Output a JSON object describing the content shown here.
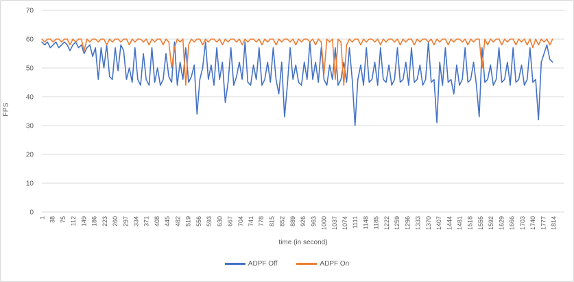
{
  "figure": {
    "background": "#ffffff",
    "border_color": "#d9d9d9",
    "gridline_color": "#d9d9d9",
    "label_color": "#595959"
  },
  "axes": {
    "y_title": "FPS",
    "x_title": "time (in second)",
    "y_ticks": [
      0,
      10,
      20,
      30,
      40,
      50,
      60,
      70
    ],
    "x_tick_labels": [
      "1",
      "38",
      "75",
      "112",
      "149",
      "186",
      "223",
      "260",
      "297",
      "334",
      "371",
      "408",
      "445",
      "482",
      "519",
      "556",
      "593",
      "630",
      "667",
      "704",
      "741",
      "778",
      "815",
      "852",
      "889",
      "926",
      "963",
      "1000",
      "1037",
      "1074",
      "1111",
      "1148",
      "1185",
      "1222",
      "1259",
      "1296",
      "1333",
      "1370",
      "1407",
      "1444",
      "1481",
      "1518",
      "1555",
      "1592",
      "1629",
      "1666",
      "1703",
      "1740",
      "1777",
      "1814"
    ]
  },
  "legend": [
    {
      "label": "ADPF Off",
      "color": "#4472C4"
    },
    {
      "label": "ADPF On",
      "color": "#ED7D31"
    }
  ],
  "chart_data": {
    "type": "line",
    "title": "",
    "xlabel": "time (in second)",
    "ylabel": "FPS",
    "xlim": [
      1,
      1814
    ],
    "ylim": [
      0,
      70
    ],
    "y_tick_step": 10,
    "x_tick_step": 37,
    "grid": true,
    "legend_position": "bottom-center",
    "x": [
      1,
      11,
      21,
      31,
      41,
      51,
      61,
      71,
      81,
      91,
      101,
      111,
      121,
      131,
      141,
      151,
      161,
      171,
      181,
      191,
      201,
      211,
      221,
      231,
      241,
      251,
      261,
      271,
      281,
      291,
      301,
      311,
      321,
      331,
      341,
      351,
      361,
      371,
      381,
      391,
      401,
      411,
      421,
      431,
      441,
      451,
      461,
      471,
      481,
      491,
      501,
      511,
      521,
      531,
      541,
      551,
      561,
      571,
      581,
      591,
      601,
      611,
      621,
      631,
      641,
      651,
      661,
      671,
      681,
      691,
      701,
      711,
      721,
      731,
      741,
      751,
      761,
      771,
      781,
      791,
      801,
      811,
      821,
      831,
      841,
      851,
      861,
      871,
      881,
      891,
      901,
      911,
      921,
      931,
      941,
      951,
      961,
      971,
      981,
      991,
      1001,
      1011,
      1021,
      1031,
      1041,
      1051,
      1061,
      1071,
      1081,
      1091,
      1101,
      1111,
      1121,
      1131,
      1141,
      1151,
      1161,
      1171,
      1181,
      1191,
      1201,
      1211,
      1221,
      1231,
      1241,
      1251,
      1261,
      1271,
      1281,
      1291,
      1301,
      1311,
      1321,
      1331,
      1341,
      1351,
      1361,
      1371,
      1381,
      1391,
      1401,
      1411,
      1421,
      1431,
      1441,
      1451,
      1461,
      1471,
      1481,
      1491,
      1501,
      1511,
      1521,
      1531,
      1541,
      1551,
      1561,
      1571,
      1581,
      1591,
      1601,
      1611,
      1621,
      1631,
      1641,
      1651,
      1661,
      1671,
      1681,
      1691,
      1701,
      1711,
      1721,
      1731,
      1741,
      1751,
      1761,
      1771,
      1781,
      1791,
      1801,
      1811
    ],
    "series": [
      {
        "name": "ADPF Off",
        "color": "#4472C4",
        "values": [
          59,
          58,
          59,
          57,
          58,
          59,
          57,
          58,
          59,
          58,
          56,
          58,
          59,
          57,
          58,
          55,
          57,
          58,
          54,
          57,
          46,
          57,
          50,
          58,
          47,
          46,
          57,
          49,
          58,
          56,
          46,
          50,
          45,
          57,
          46,
          44,
          55,
          46,
          44,
          57,
          45,
          50,
          44,
          46,
          55,
          47,
          45,
          59,
          44,
          52,
          46,
          57,
          45,
          47,
          51,
          34,
          46,
          50,
          59,
          46,
          51,
          44,
          57,
          46,
          52,
          38,
          45,
          57,
          44,
          47,
          52,
          46,
          59,
          45,
          44,
          51,
          46,
          57,
          44,
          46,
          52,
          45,
          57,
          46,
          41,
          52,
          33,
          44,
          57,
          46,
          51,
          45,
          44,
          52,
          46,
          59,
          46,
          52,
          45,
          57,
          46,
          44,
          51,
          46,
          57,
          44,
          46,
          52,
          45,
          57,
          46,
          30,
          46,
          51,
          44,
          57,
          45,
          46,
          52,
          44,
          57,
          46,
          45,
          51,
          44,
          46,
          57,
          45,
          46,
          52,
          44,
          57,
          45,
          46,
          51,
          44,
          46,
          59,
          45,
          46,
          31,
          52,
          44,
          57,
          45,
          46,
          41,
          51,
          44,
          46,
          57,
          45,
          46,
          52,
          44,
          33,
          57,
          45,
          46,
          51,
          44,
          46,
          57,
          45,
          46,
          52,
          44,
          57,
          45,
          46,
          51,
          44,
          46,
          57,
          45,
          46,
          32,
          52,
          55,
          58,
          53,
          52
        ]
      },
      {
        "name": "ADPF On",
        "color": "#ED7D31",
        "values": [
          60,
          59,
          60,
          60,
          59,
          60,
          60,
          59,
          60,
          60,
          58,
          60,
          59,
          60,
          60,
          56,
          60,
          59,
          60,
          60,
          59,
          60,
          60,
          58,
          60,
          59,
          60,
          60,
          59,
          60,
          60,
          58,
          60,
          59,
          60,
          60,
          59,
          60,
          58,
          60,
          59,
          60,
          60,
          58,
          60,
          59,
          50,
          57,
          60,
          59,
          60,
          44,
          58,
          60,
          59,
          60,
          60,
          58,
          60,
          59,
          60,
          60,
          59,
          60,
          58,
          60,
          59,
          60,
          60,
          59,
          60,
          58,
          60,
          59,
          60,
          60,
          59,
          60,
          58,
          60,
          59,
          60,
          60,
          58,
          60,
          59,
          60,
          60,
          59,
          60,
          58,
          60,
          59,
          60,
          60,
          59,
          60,
          58,
          60,
          59,
          48,
          60,
          59,
          60,
          46,
          60,
          59,
          44,
          58,
          60,
          59,
          60,
          60,
          58,
          60,
          59,
          60,
          60,
          59,
          60,
          58,
          60,
          59,
          60,
          60,
          59,
          60,
          58,
          60,
          59,
          60,
          60,
          58,
          60,
          59,
          60,
          60,
          59,
          60,
          58,
          60,
          59,
          60,
          60,
          58,
          60,
          59,
          60,
          60,
          59,
          60,
          58,
          60,
          59,
          60,
          60,
          50,
          60,
          58,
          60,
          59,
          60,
          60,
          58,
          60,
          59,
          60,
          60,
          58,
          60,
          59,
          60,
          58,
          60,
          57,
          60,
          58,
          60,
          59,
          60,
          58,
          60
        ]
      }
    ]
  }
}
